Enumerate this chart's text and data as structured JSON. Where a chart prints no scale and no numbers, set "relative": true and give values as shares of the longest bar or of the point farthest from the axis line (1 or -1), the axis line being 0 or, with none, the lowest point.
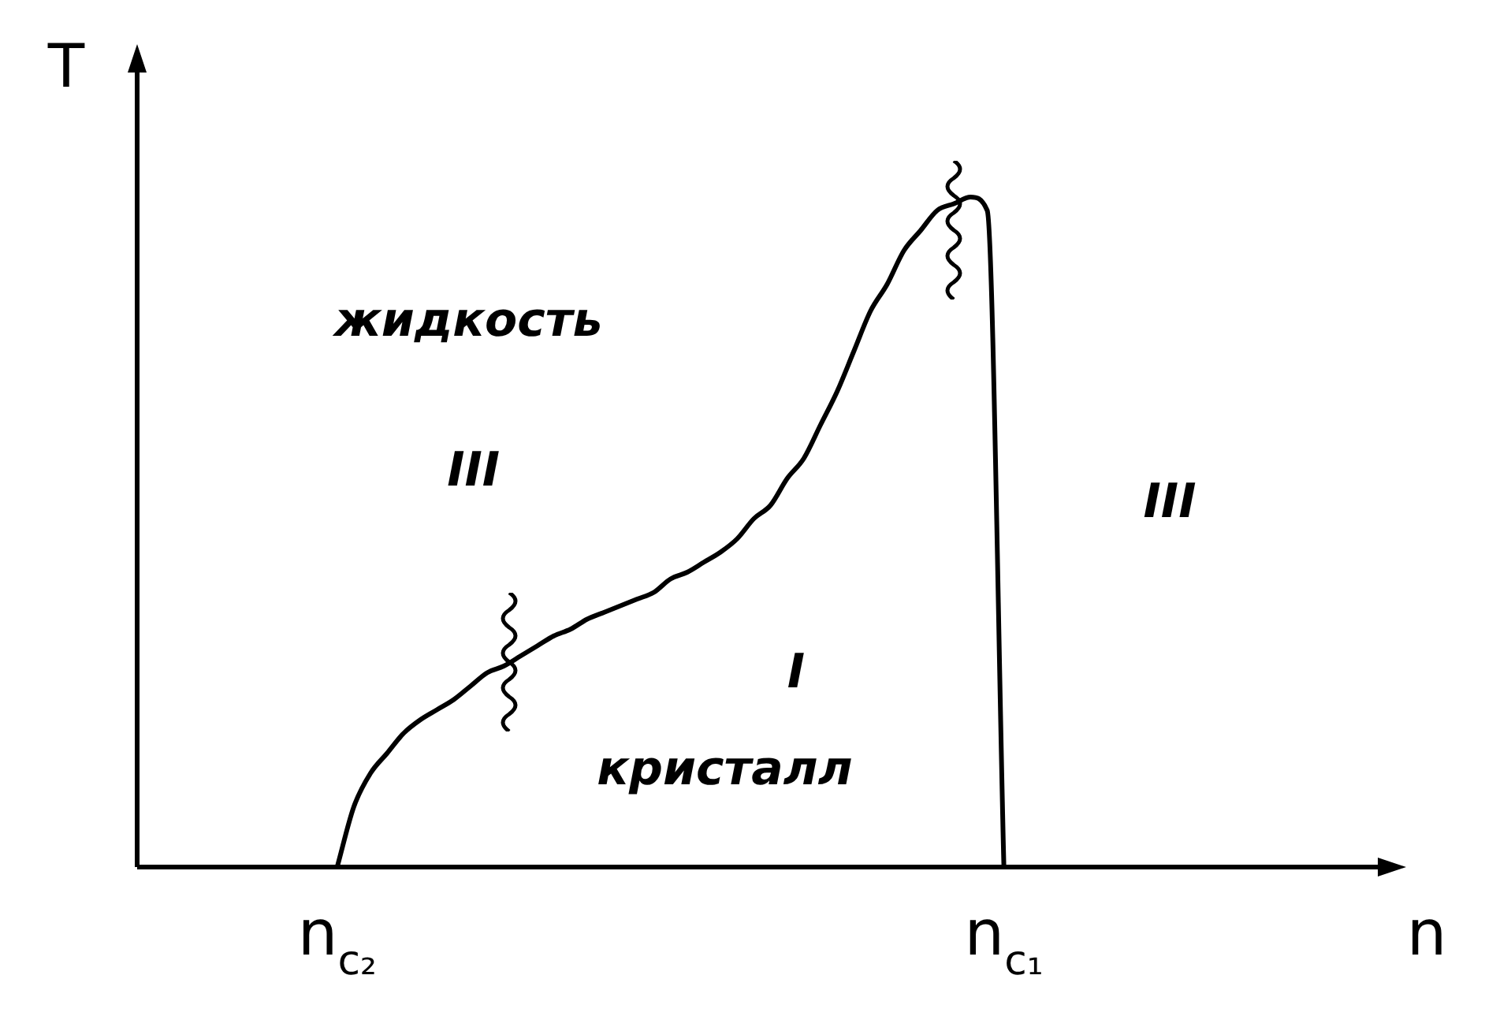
{
  "chart_data": {
    "type": "line",
    "relative": true,
    "xlabel": "n",
    "ylabel": "T",
    "categories": [
      null,
      null,
      null,
      null,
      null,
      null,
      null,
      null,
      null,
      null,
      null,
      null,
      "n$_{c₂}$",
      null,
      null,
      null,
      null,
      null,
      null,
      null,
      null,
      null,
      null,
      null,
      null,
      null,
      null,
      null,
      null,
      null,
      null,
      null,
      null,
      null,
      null,
      null,
      null,
      null,
      null,
      null,
      null,
      null,
      null,
      null,
      null,
      null,
      null,
      null,
      null,
      null,
      null,
      null,
      "n$_{c₁}$",
      null,
      null,
      null,
      null,
      null,
      null,
      null,
      null,
      null,
      null,
      null,
      null,
      null,
      null,
      null,
      null,
      null,
      null,
      null,
      null,
      null,
      null,
      null
    ],
    "series": [
      {
        "color": "#000000",
        "values": [
          null,
          null,
          null,
          null,
          null,
          null,
          null,
          null,
          null,
          null,
          null,
          null,
          0,
          0.09,
          0.14,
          0.17,
          0.2,
          0.22,
          0.235,
          0.25,
          0.27,
          0.29,
          0.3,
          0.315,
          0.33,
          0.345,
          0.355,
          0.37,
          0.38,
          0.39,
          0.4,
          0.41,
          0.43,
          0.44,
          0.455,
          0.47,
          0.49,
          0.52,
          0.54,
          0.58,
          0.61,
          0.66,
          0.71,
          0.77,
          0.83,
          0.87,
          0.92,
          0.95,
          0.98,
          0.99,
          1,
          0.98,
          0,
          null,
          null,
          null,
          null,
          null,
          null,
          null,
          null,
          null,
          null,
          null,
          null,
          null,
          null,
          null,
          null,
          null,
          null,
          null,
          null,
          null,
          null,
          null
        ]
      }
    ],
    "annotations": [
      "жидкость",
      "III",
      "III",
      "I",
      "кристалл"
    ],
    "marker": "none",
    "line_style": "solid"
  }
}
